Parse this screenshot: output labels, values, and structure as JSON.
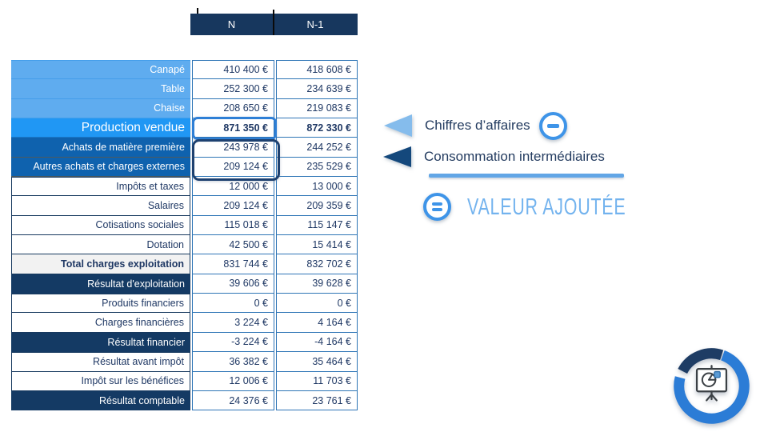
{
  "header": {
    "col_n": "N",
    "col_n1": "N-1"
  },
  "table": {
    "rows": [
      {
        "label": "Canapé",
        "n": "410 400 €",
        "n1": "418 608 €",
        "style": "light"
      },
      {
        "label": "Table",
        "n": "252 300 €",
        "n1": "234 639 €",
        "style": "light"
      },
      {
        "label": "Chaise",
        "n": "208 650 €",
        "n1": "219 083 €",
        "style": "light"
      },
      {
        "label": "Production vendue",
        "n": "871 350 €",
        "n1": "872 330 €",
        "style": "accent"
      },
      {
        "label": "Achats de matière première",
        "n": "243 978 €",
        "n1": "244 252 €",
        "style": "deep"
      },
      {
        "label": "Autres achats et charges externes",
        "n": "209 124 €",
        "n1": "235 529 €",
        "style": "deep"
      },
      {
        "label": "Impôts et taxes",
        "n": "12 000 €",
        "n1": "13 000 €",
        "style": "plain"
      },
      {
        "label": "Salaires",
        "n": "209 124 €",
        "n1": "209 359 €",
        "style": "plain"
      },
      {
        "label": "Cotisations sociales",
        "n": "115 018 €",
        "n1": "115 147 €",
        "style": "plain"
      },
      {
        "label": "Dotation",
        "n": "42 500 €",
        "n1": "15 414 €",
        "style": "plain"
      },
      {
        "label": "Total charges exploitation",
        "n": "831 744 €",
        "n1": "832 702 €",
        "style": "total"
      },
      {
        "label": "Résultat d'exploitation",
        "n": "39 606 €",
        "n1": "39 628 €",
        "style": "dark"
      },
      {
        "label": "Produits financiers",
        "n": "0 €",
        "n1": "0 €",
        "style": "plain"
      },
      {
        "label": "Charges financières",
        "n": "3 224 €",
        "n1": "4 164 €",
        "style": "plain"
      },
      {
        "label": "Résultat financier",
        "n": "-3 224 €",
        "n1": "-4 164 €",
        "style": "dark"
      },
      {
        "label": "Résultat avant impôt",
        "n": "36 382 €",
        "n1": "35 464 €",
        "style": "plain"
      },
      {
        "label": "Impôt sur les bénéfices",
        "n": "12 006 €",
        "n1": "11 703 €",
        "style": "plain"
      },
      {
        "label": "Résultat comptable",
        "n": "24 376 €",
        "n1": "23 761 €",
        "style": "dark"
      }
    ]
  },
  "annotations": {
    "chiffres_affaires": "Chiffres d’affaires",
    "consommation": "Consommation intermédiaires",
    "valeur_ajoutee": "VALEUR AJOUTÉE",
    "minus_icon": "minus-in-circle",
    "equals_icon": "equals-in-circle"
  },
  "colors": {
    "header_bg": "#17375E",
    "row_light": "#5FACEF",
    "row_accent": "#2097F4",
    "row_deep": "#0F62AE",
    "row_dark": "#143A64",
    "row_total_bg": "#F2F2F2",
    "value_border": "#2E75B6",
    "text_navy": "#1F3864",
    "highlight_blue": "#2E7FD6",
    "highlight_navy": "#1E4170",
    "annotation_light_blue": "#73B3EE",
    "ring_blue": "#2B7CD6",
    "ring_navy": "#1E3C64"
  },
  "logo": {
    "name": "presentation-pie-chart-ring-logo"
  }
}
